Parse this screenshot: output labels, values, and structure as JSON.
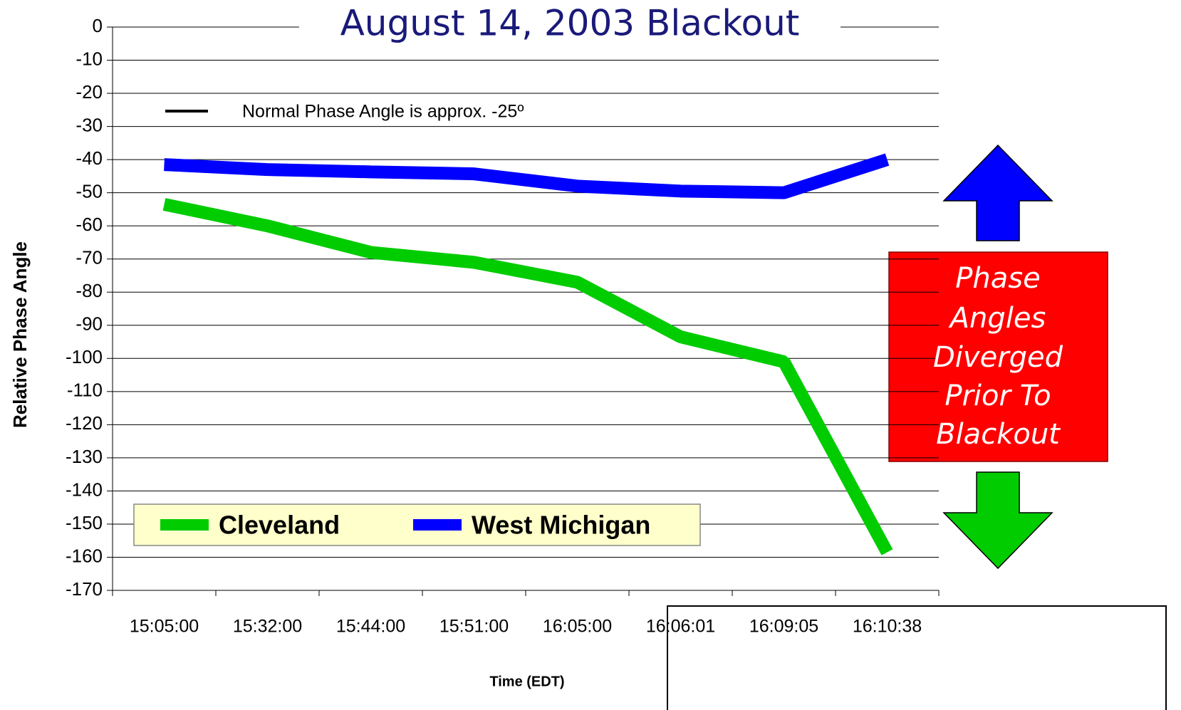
{
  "chart_data": {
    "type": "line",
    "title": "August 14, 2003 Blackout",
    "x_label": "Time (EDT)",
    "y_label": "Relative Phase Angle",
    "note": "Normal Phase Angle is approx. -25º",
    "annotation": [
      "Phase",
      "Angles",
      "Diverged",
      "Prior To",
      "Blackout"
    ],
    "categories": [
      "15:05:00",
      "15:32:00",
      "15:44:00",
      "15:51:00",
      "16:05:00",
      "16:06:01",
      "16:09:05",
      "16:10:38"
    ],
    "series": [
      {
        "name": "Cleveland",
        "color": "#00cc00",
        "values": [
          -53.5,
          -60,
          -68,
          -71,
          -77,
          -93.5,
          -101,
          -158.5
        ]
      },
      {
        "name": "West Michigan",
        "color": "#0000ff",
        "values": [
          -41.5,
          -43,
          -43.7,
          -44.3,
          -48,
          -49.5,
          -50,
          -40
        ]
      }
    ],
    "ylim": [
      -170,
      0
    ],
    "yticks": [
      0,
      -10,
      -20,
      -30,
      -40,
      -50,
      -60,
      -70,
      -80,
      -90,
      -100,
      -110,
      -120,
      -130,
      -140,
      -150,
      -160,
      -170
    ],
    "grid": true
  }
}
